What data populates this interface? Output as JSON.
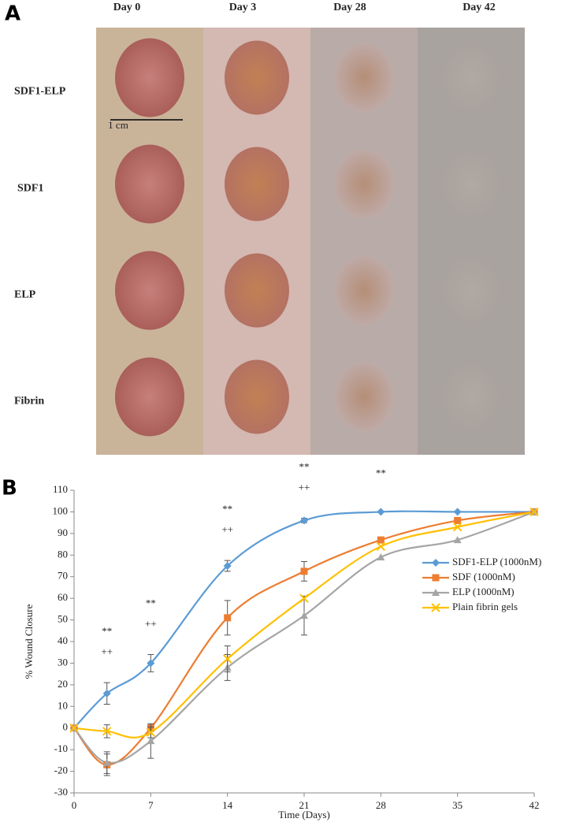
{
  "panel_labels": [
    "A",
    "B"
  ],
  "panel_a": {
    "columns": [
      "Day 0",
      "Day 3",
      "Day 28",
      "Day 42"
    ],
    "rows": [
      "SDF1-ELP",
      "SDF1",
      "ELP",
      "Fibrin"
    ],
    "scale": "1 cm"
  },
  "chart_data": {
    "type": "line",
    "x": [
      0,
      3,
      7,
      14,
      21,
      28,
      35,
      42
    ],
    "series": [
      {
        "name": "SDF1-ELP (1000nM)",
        "color": "#5b9bd5",
        "marker": "diamond",
        "values": [
          0,
          16,
          30,
          75,
          96,
          100,
          100,
          100
        ],
        "errors": [
          null,
          5,
          4,
          2.5,
          1,
          null,
          null,
          null
        ]
      },
      {
        "name": "SDF (1000nM)",
        "color": "#ed7d31",
        "marker": "square",
        "values": [
          0,
          -17,
          0,
          51,
          72.5,
          87,
          96,
          100
        ],
        "errors": [
          null,
          5,
          1.5,
          8,
          4.5,
          null,
          null,
          null
        ]
      },
      {
        "name": "ELP (1000nM)",
        "color": "#a5a5a5",
        "marker": "triangle",
        "values": [
          0,
          -16,
          -6,
          28,
          52,
          79,
          87,
          100
        ],
        "errors": [
          null,
          5,
          8,
          6,
          9,
          null,
          null,
          null
        ]
      },
      {
        "name": "Plain fibrin gels",
        "color": "#ffc000",
        "marker": "x",
        "values": [
          0,
          -1.5,
          -2,
          32,
          60,
          84,
          93,
          100
        ],
        "errors": [
          null,
          3,
          2.5,
          6,
          null,
          null,
          null,
          null
        ]
      }
    ],
    "significance": [
      {
        "x": 3,
        "labels": [
          "**",
          "++"
        ]
      },
      {
        "x": 7,
        "labels": [
          "**",
          "++"
        ]
      },
      {
        "x": 14,
        "labels": [
          "**",
          "++"
        ]
      },
      {
        "x": 21,
        "labels": [
          "**",
          "++"
        ]
      },
      {
        "x": 28,
        "labels": [
          "**"
        ]
      }
    ],
    "xlabel": "Time (Days)",
    "ylabel": "% Wound Closure",
    "xlim": [
      0,
      42
    ],
    "xticks": [
      0,
      7,
      14,
      21,
      28,
      35,
      42
    ],
    "ylim": [
      -30,
      110
    ],
    "yticks": [
      -30,
      -20,
      -10,
      0,
      10,
      20,
      30,
      40,
      50,
      60,
      70,
      80,
      90,
      100,
      110
    ],
    "grid": false,
    "legend": "right"
  }
}
